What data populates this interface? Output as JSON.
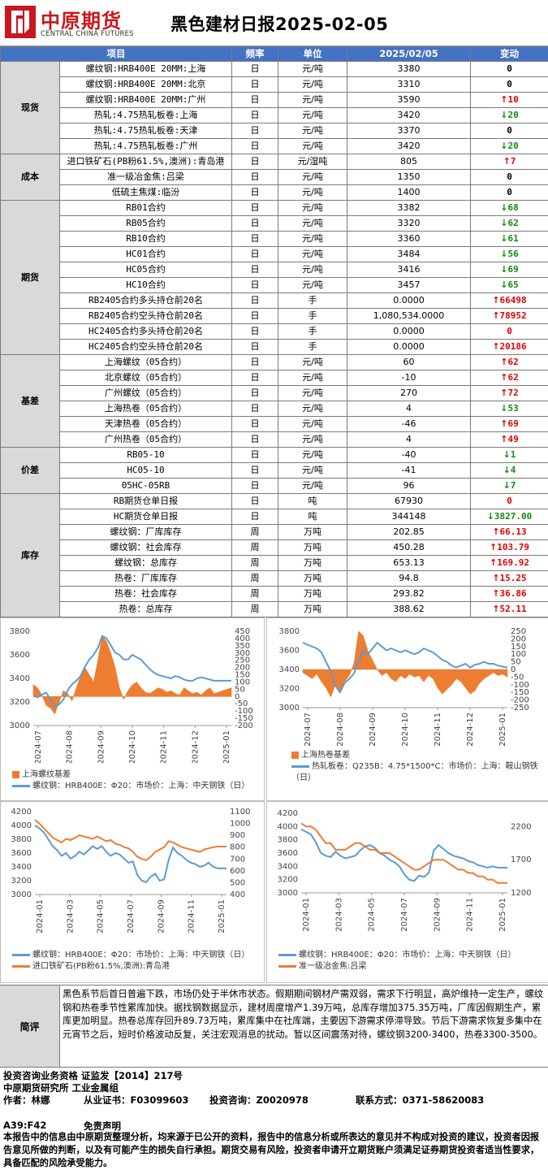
{
  "header": {
    "logo_cn": "中原期货",
    "logo_en": "CENTRAL CHINA FUTURES",
    "title": "黑色建材日报2025-02-05"
  },
  "table": {
    "columns": [
      "项目",
      "频率",
      "单位",
      "2025/02/05",
      "变动"
    ],
    "groups": [
      {
        "name": "现货",
        "rows": [
          {
            "item": "螺纹钢:HRB400E 20MM:上海",
            "freq": "日",
            "unit": "元/吨",
            "value": "3380",
            "change": "0",
            "dir": "flat"
          },
          {
            "item": "螺纹钢:HRB400E 20MM:北京",
            "freq": "日",
            "unit": "元/吨",
            "value": "3310",
            "change": "0",
            "dir": "flat"
          },
          {
            "item": "螺纹钢:HRB400E 20MM:广州",
            "freq": "日",
            "unit": "元/吨",
            "value": "3590",
            "change": "10",
            "dir": "up"
          },
          {
            "item": "热轧:4.75热轧板卷:上海",
            "freq": "日",
            "unit": "元/吨",
            "value": "3420",
            "change": "20",
            "dir": "down"
          },
          {
            "item": "热轧:4.75热轧板卷:天津",
            "freq": "日",
            "unit": "元/吨",
            "value": "3370",
            "change": "0",
            "dir": "flat"
          },
          {
            "item": "热轧:4.75热轧板卷:广州",
            "freq": "日",
            "unit": "元/吨",
            "value": "3420",
            "change": "20",
            "dir": "down"
          }
        ]
      },
      {
        "name": "成本",
        "rows": [
          {
            "item": "进口铁矿石(PB粉61.5%,澳洲):青岛港",
            "freq": "日",
            "unit": "元/湿吨",
            "value": "805",
            "change": "7",
            "dir": "up"
          },
          {
            "item": "准一级冶金焦:吕梁",
            "freq": "日",
            "unit": "元/吨",
            "value": "1350",
            "change": "0",
            "dir": "flat"
          },
          {
            "item": "低硫主焦煤:临汾",
            "freq": "日",
            "unit": "元/吨",
            "value": "1400",
            "change": "0",
            "dir": "flat"
          }
        ]
      },
      {
        "name": "期货",
        "rows": [
          {
            "item": "RB01合约",
            "freq": "日",
            "unit": "元/吨",
            "value": "3382",
            "change": "68",
            "dir": "down"
          },
          {
            "item": "RB05合约",
            "freq": "日",
            "unit": "元/吨",
            "value": "3320",
            "change": "62",
            "dir": "down"
          },
          {
            "item": "RB10合约",
            "freq": "日",
            "unit": "元/吨",
            "value": "3360",
            "change": "61",
            "dir": "down"
          },
          {
            "item": "HC01合约",
            "freq": "日",
            "unit": "元/吨",
            "value": "3484",
            "change": "56",
            "dir": "down"
          },
          {
            "item": "HC05合约",
            "freq": "日",
            "unit": "元/吨",
            "value": "3416",
            "change": "69",
            "dir": "down"
          },
          {
            "item": "HC10合约",
            "freq": "日",
            "unit": "元/吨",
            "value": "3457",
            "change": "65",
            "dir": "down"
          },
          {
            "item": "RB2405合约多头持仓前20名",
            "freq": "日",
            "unit": "手",
            "value": "0.0000",
            "change": "66498",
            "dir": "up"
          },
          {
            "item": "RB2405合约空头持仓前20名",
            "freq": "日",
            "unit": "手",
            "value": "1,080,534.0000",
            "change": "78952",
            "dir": "up"
          },
          {
            "item": "HC2405合约多头持仓前20名",
            "freq": "日",
            "unit": "手",
            "value": "0.0000",
            "change": "0",
            "dir": "flat-red"
          },
          {
            "item": "HC2405合约空头持仓前20名",
            "freq": "日",
            "unit": "手",
            "value": "0.0000",
            "change": "20186",
            "dir": "up"
          }
        ]
      },
      {
        "name": "基差",
        "rows": [
          {
            "item": "上海螺纹（05合约）",
            "freq": "日",
            "unit": "元/吨",
            "value": "60",
            "change": "62",
            "dir": "up"
          },
          {
            "item": "北京螺纹（05合约）",
            "freq": "日",
            "unit": "元/吨",
            "value": "-10",
            "change": "62",
            "dir": "up"
          },
          {
            "item": "广州螺纹（05合约）",
            "freq": "日",
            "unit": "元/吨",
            "value": "270",
            "change": "72",
            "dir": "up"
          },
          {
            "item": "上海热卷（05合约）",
            "freq": "日",
            "unit": "元/吨",
            "value": "4",
            "change": "53",
            "dir": "down"
          },
          {
            "item": "天津热卷（05合约）",
            "freq": "日",
            "unit": "元/吨",
            "value": "-46",
            "change": "69",
            "dir": "up"
          },
          {
            "item": "广州热卷（05合约）",
            "freq": "日",
            "unit": "元/吨",
            "value": "4",
            "change": "49",
            "dir": "up"
          }
        ]
      },
      {
        "name": "价差",
        "rows": [
          {
            "item": "RB05-10",
            "freq": "日",
            "unit": "元/吨",
            "value": "-40",
            "change": "1",
            "dir": "down"
          },
          {
            "item": "HC05-10",
            "freq": "日",
            "unit": "元/吨",
            "value": "-41",
            "change": "4",
            "dir": "down"
          },
          {
            "item": "05HC-05RB",
            "freq": "日",
            "unit": "元/吨",
            "value": "96",
            "change": "7",
            "dir": "down"
          }
        ]
      },
      {
        "name": "库存",
        "rows": [
          {
            "item": "RB期货仓单日报",
            "freq": "日",
            "unit": "吨",
            "value": "67930",
            "change": "0",
            "dir": "flat-red"
          },
          {
            "item": "HC期货仓单日报",
            "freq": "日",
            "unit": "吨",
            "value": "344148",
            "change": "3827.00",
            "dir": "down"
          },
          {
            "item": "螺纹钢：厂库库存",
            "freq": "周",
            "unit": "万吨",
            "value": "202.85",
            "change": "66.13",
            "dir": "up"
          },
          {
            "item": "螺纹钢：社会库存",
            "freq": "周",
            "unit": "万吨",
            "value": "450.28",
            "change": "103.79",
            "dir": "up"
          },
          {
            "item": "螺纹钢：总库存",
            "freq": "周",
            "unit": "万吨",
            "value": "653.13",
            "change": "169.92",
            "dir": "up"
          },
          {
            "item": "热卷：厂库库存",
            "freq": "周",
            "unit": "万吨",
            "value": "94.8",
            "change": "15.25",
            "dir": "up"
          },
          {
            "item": "热卷：社会库存",
            "freq": "周",
            "unit": "万吨",
            "value": "293.82",
            "change": "36.86",
            "dir": "up"
          },
          {
            "item": "热卷：总库存",
            "freq": "周",
            "unit": "万吨",
            "value": "388.62",
            "change": "52.11",
            "dir": "up"
          }
        ]
      }
    ]
  },
  "colors": {
    "header_blue": "#4472c4",
    "up": "#e00000",
    "down": "#108a10",
    "line_blue": "#5b9bd5",
    "orange": "#ed7d31",
    "group_grey": "#d9d9d9",
    "brand_red": "#c8171e"
  },
  "chart_data": [
    {
      "type": "line",
      "x_ticks": [
        "2024-07",
        "2024-08",
        "2024-09",
        "2024-10",
        "2024-11",
        "2024-12",
        "2025-01"
      ],
      "ylim_left": [
        3000,
        3800
      ],
      "yticks_left": [
        3000,
        3200,
        3400,
        3600,
        3800
      ],
      "ylim_right": [
        -200,
        450
      ],
      "yticks_right": [
        -200,
        -150,
        -100,
        -50,
        0,
        50,
        100,
        150,
        200,
        250,
        300,
        350,
        400,
        450
      ],
      "series": [
        {
          "name": "上海螺纹基差",
          "kind": "area",
          "axis": "right",
          "color": "#ed7d31",
          "values": [
            80,
            60,
            10,
            -60,
            -80,
            -120,
            -40,
            40,
            20,
            -30,
            60,
            140,
            200,
            150,
            100,
            250,
            420,
            380,
            300,
            200,
            60,
            -20,
            40,
            80,
            100,
            60,
            30,
            20,
            40,
            60,
            50,
            30,
            40,
            20,
            10,
            60,
            40,
            20,
            30,
            10,
            40,
            60,
            20,
            30,
            40,
            50,
            60
          ]
        },
        {
          "name": "螺纹钢：HRB400E：Φ20：市场价：上海：中天钢铁（日）",
          "kind": "line",
          "axis": "left",
          "color": "#5b9bd5",
          "values": [
            3250,
            3240,
            3260,
            3280,
            3220,
            3160,
            3180,
            3220,
            3300,
            3350,
            3380,
            3420,
            3500,
            3560,
            3600,
            3660,
            3760,
            3740,
            3680,
            3620,
            3600,
            3560,
            3560,
            3600,
            3580,
            3560,
            3520,
            3480,
            3450,
            3430,
            3420,
            3410,
            3400,
            3420,
            3410,
            3390,
            3380,
            3380,
            3400,
            3410,
            3400,
            3390,
            3380,
            3380,
            3380,
            3380,
            3380
          ]
        }
      ]
    },
    {
      "type": "line",
      "x_ticks": [
        "2024-07",
        "2024-08",
        "2024-09",
        "2024-10",
        "2024-11",
        "2024-12",
        "2025-01"
      ],
      "ylim_left": [
        3000,
        3800
      ],
      "yticks_left": [
        3000,
        3200,
        3400,
        3600,
        3800
      ],
      "ylim_right": [
        -250,
        250
      ],
      "yticks_right": [
        -250,
        -200,
        -150,
        -100,
        -50,
        0,
        50,
        100,
        150,
        200,
        250
      ],
      "series": [
        {
          "name": "上海热卷基差",
          "kind": "area",
          "axis": "right",
          "color": "#ed7d31",
          "values": [
            -20,
            -40,
            -60,
            -30,
            -80,
            -120,
            -180,
            -100,
            -150,
            -80,
            -40,
            40,
            250,
            220,
            120,
            60,
            0,
            -40,
            -20,
            -60,
            -80,
            -40,
            -60,
            -30,
            -50,
            -40,
            -80,
            -40,
            -60,
            -120,
            -160,
            -130,
            -100,
            -60,
            -80,
            -120,
            -160,
            -140,
            -90,
            -60,
            -40,
            -20,
            -40,
            -30,
            -50
          ]
        },
        {
          "name": "热轧板卷：Q235B：4.75*1500*C：市场价：上海：鞍山钢铁（日）",
          "kind": "line",
          "axis": "left",
          "color": "#5b9bd5",
          "values": [
            3680,
            3660,
            3640,
            3620,
            3580,
            3480,
            3380,
            3230,
            3160,
            3260,
            3300,
            3360,
            3480,
            3600,
            3560,
            3620,
            3680,
            3640,
            3600,
            3620,
            3600,
            3580,
            3600,
            3580,
            3560,
            3580,
            3620,
            3600,
            3580,
            3540,
            3500,
            3480,
            3440,
            3420,
            3440,
            3460,
            3420,
            3450,
            3460,
            3480,
            3460,
            3460,
            3440,
            3430,
            3420
          ]
        }
      ]
    },
    {
      "type": "line",
      "x_ticks": [
        "2024-01",
        "2024-03",
        "2024-05",
        "2024-07",
        "2024-09",
        "2024-11",
        "2025-01"
      ],
      "ylim_left": [
        3000,
        4200
      ],
      "yticks_left": [
        3000,
        3200,
        3400,
        3600,
        3800,
        4000,
        4200
      ],
      "ylim_right": [
        400,
        1100
      ],
      "yticks_right": [
        400,
        500,
        600,
        700,
        800,
        900,
        1000,
        1100
      ],
      "series": [
        {
          "name": "螺纹钢：HRB400E：Φ20：市场价：上海：中天钢铁（日）",
          "axis": "left",
          "color": "#5b9bd5",
          "values": [
            4000,
            3960,
            3900,
            3800,
            3700,
            3640,
            3560,
            3600,
            3520,
            3560,
            3620,
            3580,
            3640,
            3700,
            3660,
            3700,
            3620,
            3560,
            3600,
            3580,
            3520,
            3460,
            3480,
            3280,
            3200,
            3180,
            3260,
            3300,
            3200,
            3220,
            3500,
            3680,
            3600,
            3560,
            3500,
            3460,
            3440,
            3400,
            3420,
            3460,
            3400,
            3380,
            3380,
            3380
          ]
        },
        {
          "name": "进口铁矿石(PB粉61.5%,澳洲):青岛港",
          "axis": "right",
          "color": "#ed7d31",
          "values": [
            1030,
            1000,
            960,
            920,
            880,
            860,
            840,
            870,
            860,
            880,
            900,
            890,
            880,
            870,
            890,
            870,
            850,
            860,
            830,
            820,
            800,
            790,
            760,
            720,
            700,
            690,
            720,
            760,
            780,
            800,
            850,
            840,
            820,
            800,
            790,
            780,
            770,
            760,
            780,
            790,
            800,
            805,
            805,
            805
          ]
        }
      ]
    },
    {
      "type": "line",
      "x_ticks": [
        "2024-01",
        "2024-03",
        "2024-05",
        "2024-07",
        "2024-09",
        "2024-11",
        "2025-01"
      ],
      "ylim_left": [
        3000,
        4200
      ],
      "yticks_left": [
        3000,
        3200,
        3400,
        3600,
        3800,
        4000,
        4200
      ],
      "ylim_right": [
        1200,
        2400
      ],
      "yticks_right": [
        1200,
        1700,
        2200
      ],
      "series": [
        {
          "name": "螺纹钢：HRB400E：Φ20：市场价：上海：中天钢铁（日）",
          "axis": "left",
          "color": "#5b9bd5",
          "values": [
            3960,
            3920,
            3880,
            3760,
            3600,
            3560,
            3540,
            3620,
            3560,
            3520,
            3540,
            3560,
            3640,
            3700,
            3720,
            3680,
            3600,
            3560,
            3500,
            3460,
            3400,
            3280,
            3200,
            3180,
            3260,
            3240,
            3300,
            3640,
            3720,
            3660,
            3600,
            3560,
            3540,
            3520,
            3480,
            3460,
            3420,
            3400,
            3380,
            3400,
            3380,
            3380,
            3380
          ]
        },
        {
          "name": "准一级冶金焦:吕梁",
          "axis": "right",
          "color": "#ed7d31",
          "values": [
            2250,
            2200,
            2200,
            2150,
            2050,
            1950,
            1950,
            1850,
            1850,
            1850,
            1900,
            1950,
            1950,
            1900,
            1850,
            1850,
            1800,
            1800,
            1800,
            1750,
            1700,
            1650,
            1600,
            1550,
            1550,
            1600,
            1650,
            1700,
            1700,
            1700,
            1650,
            1600,
            1550,
            1550,
            1500,
            1500,
            1450,
            1450,
            1400,
            1400,
            1350,
            1350,
            1350
          ]
        }
      ]
    }
  ],
  "comment": {
    "label": "简评",
    "text": "黑色系节后首日普遍下跌，市场仍处于半休市状态。假期期间钢材产需双弱，需求下行明显，高炉维持一定生产，螺纹钢和热卷季节性累库加快。据找钢数据显示，建材周度增产1.39万吨，总库存增加375.35万吨，厂库因假期生产，累库更加明显。热卷总库存回升89.73万吨，累库集中在社库端，主要因下游需求停滞导致。节后下游需求恢复多集中在元宵节之后，短时价格波动反复，关注宏观消息的扰动。暂以区间震荡对待，螺纹钢3200-3400，热卷3300-3500。"
  },
  "footer": {
    "qualification": "投资咨询业务资格  证监发【2014】217号",
    "institute": "中原期货研究所   工业金属组",
    "author": "作者：林娜",
    "license": "从业证书：F03099603",
    "consult": "投资咨询：Z0020978",
    "contact": "联系方式：0371-58620083",
    "code": "A39:F42",
    "disclaimer_title": "免责声明",
    "disclaimer": "本报告中的信息由中原期货整理分析，均来源于已公开的资料，报告中的信息分析或所表达的意见并不构成对投资的建议，投资者因报告意见所做的判断，以及有可能产生的损失自行承担。期货交易有风险，投资者申请开立期货账户须满足证券期货投资者适当性要求，具备匹配的风险承受能力。"
  }
}
